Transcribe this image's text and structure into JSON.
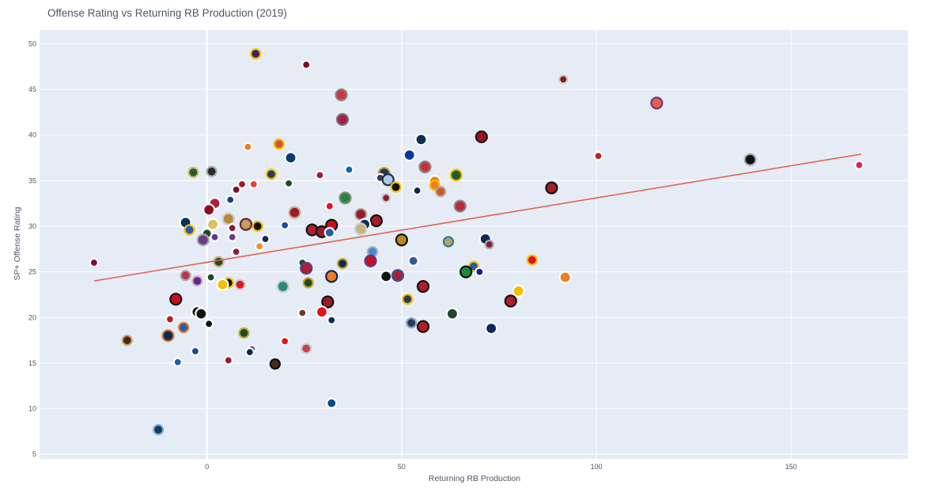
{
  "chart_data": {
    "type": "scatter",
    "title": "Offense Rating vs Returning RB Production (2019)",
    "xlabel": "Returning RB Production",
    "ylabel": "SP+ Offense Rating",
    "xlim": [
      -43,
      180
    ],
    "ylim": [
      4.5,
      51.5
    ],
    "x_ticks": [
      0,
      50,
      100,
      150
    ],
    "y_ticks": [
      5,
      10,
      15,
      20,
      25,
      30,
      35,
      40,
      45,
      50
    ],
    "grid": true,
    "legend": "none",
    "colors": {
      "plot_background": "#e5ecf6",
      "grid": "#ffffff",
      "trendline": "#e45c49"
    },
    "trendline": {
      "x": [
        -29,
        168
      ],
      "y": [
        24.0,
        37.9
      ]
    },
    "points": [
      {
        "x": 12.5,
        "y": 48.9,
        "r": 6,
        "fill": "#3b1f6b",
        "ring": "#f2c200"
      },
      {
        "x": 25.5,
        "y": 47.7,
        "r": 5,
        "fill": "#7c0e1c",
        "ring": "#ffffff"
      },
      {
        "x": 91.5,
        "y": 46.1,
        "r": 5,
        "fill": "#8b1a1a",
        "ring": "#cccccc"
      },
      {
        "x": 115.5,
        "y": 43.5,
        "r": 7,
        "fill": "#e8604c",
        "ring": "#6a3d7a"
      },
      {
        "x": 34.5,
        "y": 44.4,
        "r": 7,
        "fill": "#d0373d",
        "ring": "#888888"
      },
      {
        "x": 34.8,
        "y": 41.7,
        "r": 7,
        "fill": "#a81d49",
        "ring": "#777777"
      },
      {
        "x": 70.5,
        "y": 39.8,
        "r": 7,
        "fill": "#a01020",
        "ring": "#1a1a1a"
      },
      {
        "x": 55,
        "y": 39.5,
        "r": 7,
        "fill": "#0f2f55",
        "ring": "#ffffff"
      },
      {
        "x": 18.5,
        "y": 39.0,
        "r": 6,
        "fill": "#d94e3f",
        "ring": "#f2c200"
      },
      {
        "x": 10.5,
        "y": 38.7,
        "r": 5,
        "fill": "#f07c24",
        "ring": "#ffffff"
      },
      {
        "x": 52,
        "y": 37.8,
        "r": 7,
        "fill": "#0b3a9e",
        "ring": "#ffffff"
      },
      {
        "x": 100.5,
        "y": 37.7,
        "r": 5,
        "fill": "#c31f1f",
        "ring": "#ffffff"
      },
      {
        "x": 21.5,
        "y": 37.5,
        "r": 7,
        "fill": "#0c3b73",
        "ring": "#ffffff"
      },
      {
        "x": 139.5,
        "y": 37.3,
        "r": 7,
        "fill": "#111111",
        "ring": "#aaaaaa"
      },
      {
        "x": 167.5,
        "y": 36.7,
        "r": 5,
        "fill": "#d0294a",
        "ring": "#ffffff"
      },
      {
        "x": 56,
        "y": 36.5,
        "r": 7,
        "fill": "#c9303a",
        "ring": "#888888"
      },
      {
        "x": 36.5,
        "y": 36.2,
        "r": 5,
        "fill": "#1066a8",
        "ring": "#ffffff"
      },
      {
        "x": 1.2,
        "y": 36.0,
        "r": 6,
        "fill": "#2a2a2a",
        "ring": "#aaaaaa"
      },
      {
        "x": -3.5,
        "y": 35.9,
        "r": 6,
        "fill": "#1f5e2a",
        "ring": "#d4b86a"
      },
      {
        "x": 45.5,
        "y": 35.8,
        "r": 7,
        "fill": "#23395b",
        "ring": "#c9a227"
      },
      {
        "x": 16.5,
        "y": 35.7,
        "r": 6,
        "fill": "#1e3f66",
        "ring": "#f2c200"
      },
      {
        "x": 64,
        "y": 35.6,
        "r": 7,
        "fill": "#1f5c2f",
        "ring": "#f2c200"
      },
      {
        "x": 29,
        "y": 35.6,
        "r": 5,
        "fill": "#a71930",
        "ring": "#ffffff"
      },
      {
        "x": 44.5,
        "y": 35.3,
        "r": 5,
        "fill": "#3a3a6a",
        "ring": "#ffffff"
      },
      {
        "x": 46.5,
        "y": 35.1,
        "r": 7,
        "fill": "#a8c8ee",
        "ring": "#1e2f4a"
      },
      {
        "x": 58.5,
        "y": 34.9,
        "r": 7,
        "fill": "#f47a1a",
        "ring": "#ffffff"
      },
      {
        "x": 58.5,
        "y": 34.5,
        "r": 6,
        "fill": "#f47a1a",
        "ring": "#f2c200"
      },
      {
        "x": 12,
        "y": 34.6,
        "r": 5,
        "fill": "#e8422e",
        "ring": "#ffffff"
      },
      {
        "x": 9,
        "y": 34.6,
        "r": 5,
        "fill": "#9a1c2e",
        "ring": "#ffffff"
      },
      {
        "x": 21,
        "y": 34.7,
        "r": 5,
        "fill": "#1f4b2a",
        "ring": "#ffffff"
      },
      {
        "x": 88.5,
        "y": 34.2,
        "r": 7,
        "fill": "#a81d2a",
        "ring": "#111111"
      },
      {
        "x": 48.5,
        "y": 34.3,
        "r": 6,
        "fill": "#111111",
        "ring": "#f2c200"
      },
      {
        "x": 7.5,
        "y": 34.0,
        "r": 5,
        "fill": "#7c0e2a",
        "ring": "#ffffff"
      },
      {
        "x": 54,
        "y": 33.9,
        "r": 5,
        "fill": "#0c2a55",
        "ring": "#ffffff"
      },
      {
        "x": 60,
        "y": 33.8,
        "r": 6,
        "fill": "#d2581f",
        "ring": "#aaaaaa"
      },
      {
        "x": 35.5,
        "y": 33.1,
        "r": 7,
        "fill": "#1e8a3a",
        "ring": "#888888"
      },
      {
        "x": 46,
        "y": 33.1,
        "r": 5,
        "fill": "#8a1c3a",
        "ring": "#cccccc"
      },
      {
        "x": 6,
        "y": 32.9,
        "r": 5,
        "fill": "#1d3f8a",
        "ring": "#ffffff"
      },
      {
        "x": 2,
        "y": 32.5,
        "r": 7,
        "fill": "#b01e3a",
        "ring": "#ffffff"
      },
      {
        "x": 31.5,
        "y": 32.2,
        "r": 5,
        "fill": "#e2121e",
        "ring": "#ffffff"
      },
      {
        "x": 65,
        "y": 32.2,
        "r": 7,
        "fill": "#b82a3a",
        "ring": "#888888"
      },
      {
        "x": 0.5,
        "y": 31.8,
        "r": 7,
        "fill": "#8b0f20",
        "ring": "#ffffff"
      },
      {
        "x": 22.5,
        "y": 31.5,
        "r": 7,
        "fill": "#9a1c2a",
        "ring": "#c8b48a"
      },
      {
        "x": 39.5,
        "y": 31.3,
        "r": 7,
        "fill": "#9a1c2a",
        "ring": "#aaaaaa"
      },
      {
        "x": 5.5,
        "y": 30.8,
        "r": 7,
        "fill": "#b58a3a",
        "ring": "#cccccc"
      },
      {
        "x": 43.5,
        "y": 30.6,
        "r": 7,
        "fill": "#a81d2a",
        "ring": "#111111"
      },
      {
        "x": -5.5,
        "y": 30.4,
        "r": 7,
        "fill": "#0c2e5c",
        "ring": "#ffffff"
      },
      {
        "x": 1.5,
        "y": 30.2,
        "r": 7,
        "fill": "#d9c06a",
        "ring": "#ffffff"
      },
      {
        "x": 10,
        "y": 30.2,
        "r": 7,
        "fill": "#b8a46a",
        "ring": "#7c1a1a"
      },
      {
        "x": 20,
        "y": 30.1,
        "r": 5,
        "fill": "#0d54a8",
        "ring": "#ffffff"
      },
      {
        "x": 40.5,
        "y": 30.2,
        "r": 7,
        "fill": "#0c2e5c",
        "ring": "#ffffff"
      },
      {
        "x": 32,
        "y": 30.1,
        "r": 7,
        "fill": "#c9101a",
        "ring": "#111111"
      },
      {
        "x": 13,
        "y": 30.0,
        "r": 6,
        "fill": "#111111",
        "ring": "#f2c200"
      },
      {
        "x": 39.5,
        "y": 29.7,
        "r": 7,
        "fill": "#c8b47a",
        "ring": "#cccccc"
      },
      {
        "x": 6.5,
        "y": 29.8,
        "r": 5,
        "fill": "#8b1a2a",
        "ring": "#ffffff"
      },
      {
        "x": -4.5,
        "y": 29.6,
        "r": 6,
        "fill": "#2a5aa8",
        "ring": "#f2c200"
      },
      {
        "x": 27,
        "y": 29.6,
        "r": 7,
        "fill": "#b01e2e",
        "ring": "#111111"
      },
      {
        "x": 29.5,
        "y": 29.4,
        "r": 7,
        "fill": "#9a1c2a",
        "ring": "#111111"
      },
      {
        "x": 31.5,
        "y": 29.3,
        "r": 6,
        "fill": "#2a5a9a",
        "ring": "#ffffff"
      },
      {
        "x": 0,
        "y": 29.2,
        "r": 6,
        "fill": "#1a4a2a",
        "ring": "#ffffff"
      },
      {
        "x": 6.5,
        "y": 28.8,
        "r": 5,
        "fill": "#6a3a8a",
        "ring": "#ffffff"
      },
      {
        "x": 2,
        "y": 28.8,
        "r": 5,
        "fill": "#5a3a8a",
        "ring": "#ffffff"
      },
      {
        "x": 15,
        "y": 28.6,
        "r": 5,
        "fill": "#0c2a55",
        "ring": "#ffffff"
      },
      {
        "x": -1,
        "y": 28.5,
        "r": 7,
        "fill": "#6a3a8a",
        "ring": "#aaaaaa"
      },
      {
        "x": 71.5,
        "y": 28.6,
        "r": 7,
        "fill": "#0c2a55",
        "ring": "#ffffff"
      },
      {
        "x": 50,
        "y": 28.5,
        "r": 7,
        "fill": "#b88a1a",
        "ring": "#111111"
      },
      {
        "x": 62,
        "y": 28.3,
        "r": 6,
        "fill": "#b8a46a",
        "ring": "#2a7a9a"
      },
      {
        "x": 72.5,
        "y": 28.0,
        "r": 5,
        "fill": "#8b1a3a",
        "ring": "#aaaaaa"
      },
      {
        "x": 13.5,
        "y": 27.8,
        "r": 5,
        "fill": "#e8962a",
        "ring": "#ffffff"
      },
      {
        "x": 7.5,
        "y": 27.2,
        "r": 5,
        "fill": "#9a1c2a",
        "ring": "#ffffff"
      },
      {
        "x": 42.5,
        "y": 27.2,
        "r": 6,
        "fill": "#3a8ae0",
        "ring": "#aaaaaa"
      },
      {
        "x": 42,
        "y": 26.2,
        "r": 7,
        "fill": "#c9101a",
        "ring": "#5a3a9a"
      },
      {
        "x": 53,
        "y": 26.2,
        "r": 6,
        "fill": "#2a5a9a",
        "ring": "#ffffff"
      },
      {
        "x": 83.5,
        "y": 26.3,
        "r": 6,
        "fill": "#e2121e",
        "ring": "#f2c200"
      },
      {
        "x": 3,
        "y": 26.1,
        "r": 6,
        "fill": "#1e4a2a",
        "ring": "#c8b47a"
      },
      {
        "x": -29,
        "y": 26.0,
        "r": 5,
        "fill": "#7c0e3a",
        "ring": "#ffffff"
      },
      {
        "x": 24.5,
        "y": 26.0,
        "r": 5,
        "fill": "#1e4a2a",
        "ring": "#ffffff"
      },
      {
        "x": 34.8,
        "y": 25.9,
        "r": 6,
        "fill": "#0c2a55",
        "ring": "#c8a82a"
      },
      {
        "x": 68.5,
        "y": 25.6,
        "r": 6,
        "fill": "#2a5aa8",
        "ring": "#f2c200"
      },
      {
        "x": 25.5,
        "y": 25.4,
        "r": 7,
        "fill": "#b01e2e",
        "ring": "#5a3a9a"
      },
      {
        "x": 66.5,
        "y": 25.0,
        "r": 7,
        "fill": "#1e8a3a",
        "ring": "#111111"
      },
      {
        "x": 70,
        "y": 25.0,
        "r": 5,
        "fill": "#0c1e9a",
        "ring": "#ffffff"
      },
      {
        "x": 32,
        "y": 24.5,
        "r": 7,
        "fill": "#f07c24",
        "ring": "#0c2a55"
      },
      {
        "x": 46,
        "y": 24.5,
        "r": 7,
        "fill": "#111111",
        "ring": "#ffffff"
      },
      {
        "x": 49,
        "y": 24.6,
        "r": 7,
        "fill": "#b01e2e",
        "ring": "#2a5a9a"
      },
      {
        "x": 92,
        "y": 24.4,
        "r": 7,
        "fill": "#f07c24",
        "ring": "#ffffff"
      },
      {
        "x": -5.5,
        "y": 24.6,
        "r": 6,
        "fill": "#b8364a",
        "ring": "#aaaaaa"
      },
      {
        "x": 1,
        "y": 24.4,
        "r": 5,
        "fill": "#1e4a2a",
        "ring": "#ffffff"
      },
      {
        "x": -2.5,
        "y": 24.0,
        "r": 6,
        "fill": "#5a2a8a",
        "ring": "#d8a8c8"
      },
      {
        "x": 5.5,
        "y": 23.8,
        "r": 6,
        "fill": "#111111",
        "ring": "#f2c200"
      },
      {
        "x": 26,
        "y": 23.8,
        "r": 6,
        "fill": "#1e4a2a",
        "ring": "#c8a82a"
      },
      {
        "x": 4,
        "y": 23.6,
        "r": 7,
        "fill": "#f2c200",
        "ring": "#ffffff"
      },
      {
        "x": 8.5,
        "y": 23.6,
        "r": 6,
        "fill": "#e2121e",
        "ring": "#cccccc"
      },
      {
        "x": 19.5,
        "y": 23.4,
        "r": 7,
        "fill": "#2a8a7a",
        "ring": "#cccccc"
      },
      {
        "x": 55.5,
        "y": 23.4,
        "r": 7,
        "fill": "#b01e2e",
        "ring": "#111111"
      },
      {
        "x": 80,
        "y": 22.9,
        "r": 7,
        "fill": "#f2c200",
        "ring": "#ffffff"
      },
      {
        "x": 51,
        "y": 22.2,
        "r": 5,
        "fill": "#1e4a2a",
        "ring": "#ffffff"
      },
      {
        "x": 51.5,
        "y": 22.0,
        "r": 6,
        "fill": "#2a3a5a",
        "ring": "#f2c200"
      },
      {
        "x": -8,
        "y": 22.0,
        "r": 7,
        "fill": "#c9101a",
        "ring": "#111111"
      },
      {
        "x": 78,
        "y": 21.8,
        "r": 7,
        "fill": "#b01e2e",
        "ring": "#111111"
      },
      {
        "x": 31,
        "y": 21.7,
        "r": 7,
        "fill": "#9a1c2a",
        "ring": "#111111"
      },
      {
        "x": -2.5,
        "y": 20.6,
        "r": 7,
        "fill": "#111111",
        "ring": "#ffffff"
      },
      {
        "x": -1.5,
        "y": 20.4,
        "r": 7,
        "fill": "#111111",
        "ring": "#ffffff"
      },
      {
        "x": 29.5,
        "y": 20.6,
        "r": 7,
        "fill": "#e2121e",
        "ring": "#ffffff"
      },
      {
        "x": 24.5,
        "y": 20.5,
        "r": 5,
        "fill": "#6a3a1a",
        "ring": "#ffffff"
      },
      {
        "x": 63,
        "y": 20.4,
        "r": 7,
        "fill": "#1e4a2a",
        "ring": "#ffffff"
      },
      {
        "x": -9.5,
        "y": 19.8,
        "r": 5,
        "fill": "#b81e1e",
        "ring": "#ffffff"
      },
      {
        "x": 32,
        "y": 19.7,
        "r": 5,
        "fill": "#0c2a55",
        "ring": "#ffffff"
      },
      {
        "x": 52.5,
        "y": 19.4,
        "r": 6,
        "fill": "#2a3a5a",
        "ring": "#8aa8c8"
      },
      {
        "x": 0.5,
        "y": 19.3,
        "r": 5,
        "fill": "#111111",
        "ring": "#ffffff"
      },
      {
        "x": 55.5,
        "y": 19.0,
        "r": 7,
        "fill": "#b01e2e",
        "ring": "#111111"
      },
      {
        "x": 73,
        "y": 18.8,
        "r": 7,
        "fill": "#0c2a55",
        "ring": "#ffffff"
      },
      {
        "x": -6,
        "y": 18.9,
        "r": 6,
        "fill": "#2a5aa8",
        "ring": "#e07c2a"
      },
      {
        "x": 9.5,
        "y": 18.3,
        "r": 6,
        "fill": "#1e4a2a",
        "ring": "#c8a82a"
      },
      {
        "x": -10,
        "y": 18.0,
        "r": 7,
        "fill": "#0c2a55",
        "ring": "#e07c2a"
      },
      {
        "x": -20.5,
        "y": 17.5,
        "r": 6,
        "fill": "#4a2a1a",
        "ring": "#c8a86a"
      },
      {
        "x": 20,
        "y": 17.4,
        "r": 5,
        "fill": "#e2121e",
        "ring": "#ffffff"
      },
      {
        "x": 25.5,
        "y": 16.6,
        "r": 6,
        "fill": "#c8404a",
        "ring": "#cccccc"
      },
      {
        "x": 11.5,
        "y": 16.5,
        "r": 5,
        "fill": "#5a2a8a",
        "ring": "#ffffff"
      },
      {
        "x": -3,
        "y": 16.3,
        "r": 5,
        "fill": "#0c4a9a",
        "ring": "#ffffff"
      },
      {
        "x": 11,
        "y": 16.2,
        "r": 5,
        "fill": "#0c2a55",
        "ring": "#ffffff"
      },
      {
        "x": 5.5,
        "y": 15.3,
        "r": 5,
        "fill": "#9a1c2a",
        "ring": "#ffffff"
      },
      {
        "x": -7.5,
        "y": 15.1,
        "r": 5,
        "fill": "#2a5aa8",
        "ring": "#ffffff"
      },
      {
        "x": 17.5,
        "y": 14.9,
        "r": 6,
        "fill": "#4a2a1a",
        "ring": "#111111"
      },
      {
        "x": 32,
        "y": 10.6,
        "r": 6,
        "fill": "#0c4a8a",
        "ring": "#ffffff"
      },
      {
        "x": -12.5,
        "y": 7.7,
        "r": 6,
        "fill": "#0c3a6a",
        "ring": "#8aa8c8"
      }
    ]
  }
}
